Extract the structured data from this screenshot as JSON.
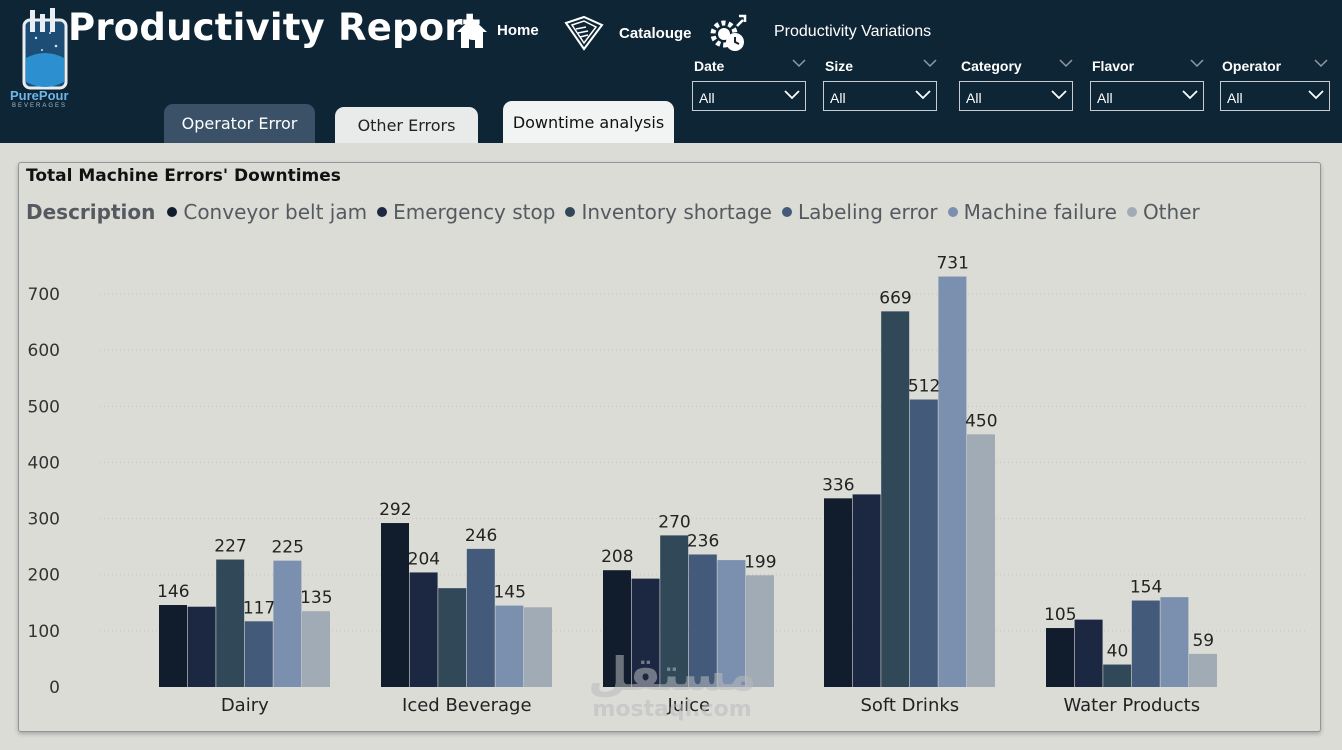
{
  "header": {
    "title": "Productivity Report",
    "logo": {
      "name": "PurePour",
      "subtitle": "BEVERAGES"
    },
    "nav": [
      {
        "label": "Home",
        "icon": "home-icon"
      },
      {
        "label": "Catalouge",
        "icon": "catalogue-icon"
      },
      {
        "label": "Productivity Variations",
        "icon": "gear-clock-icon"
      }
    ]
  },
  "slicers": [
    {
      "label": "Date",
      "value": "All"
    },
    {
      "label": "Size",
      "value": "All"
    },
    {
      "label": "Category",
      "value": "All"
    },
    {
      "label": "Flavor",
      "value": "All"
    },
    {
      "label": "Operator",
      "value": "All"
    }
  ],
  "tabs": [
    {
      "label": "Operator Error"
    },
    {
      "label": "Other Errors"
    },
    {
      "label": "Downtime analysis"
    }
  ],
  "colors": {
    "header_bg": "#0e2535",
    "series": [
      "#111c2c",
      "#1c2741",
      "#314859",
      "#435a7a",
      "#7b8fae",
      "#a1abb5"
    ]
  },
  "watermark": {
    "arabic": "مستقل",
    "latin": "mostaql.com"
  },
  "chart_data": {
    "type": "bar",
    "title": "Total Machine Errors' Downtimes",
    "legend_title": "Description",
    "legend_position": "top-left",
    "categories": [
      "Dairy",
      "Iced Beverage",
      "Juice",
      "Soft Drinks",
      "Water Products"
    ],
    "series": [
      {
        "name": "Conveyor belt jam",
        "values": [
          146,
          292,
          208,
          336,
          105
        ]
      },
      {
        "name": "Emergency stop",
        "values": [
          143,
          204,
          193,
          343,
          120
        ]
      },
      {
        "name": "Inventory shortage",
        "values": [
          227,
          176,
          270,
          669,
          40
        ]
      },
      {
        "name": "Labeling error",
        "values": [
          117,
          246,
          236,
          512,
          154
        ]
      },
      {
        "name": "Machine failure",
        "values": [
          225,
          145,
          226,
          731,
          160
        ]
      },
      {
        "name": "Other",
        "values": [
          135,
          142,
          199,
          450,
          59
        ]
      }
    ],
    "data_labels": [
      [
        "146",
        "",
        "227",
        "117",
        "225",
        "135"
      ],
      [
        "292",
        "204",
        "",
        "246",
        "145",
        ""
      ],
      [
        "208",
        "",
        "270",
        "236",
        "",
        "199"
      ],
      [
        "336",
        "",
        "669",
        "512",
        "731",
        "450"
      ],
      [
        "105",
        "",
        "40",
        "154",
        "",
        "59"
      ]
    ],
    "y_ticks": [
      0,
      100,
      200,
      300,
      400,
      500,
      600,
      700
    ],
    "ylim": [
      0,
      790
    ],
    "grid": true
  }
}
